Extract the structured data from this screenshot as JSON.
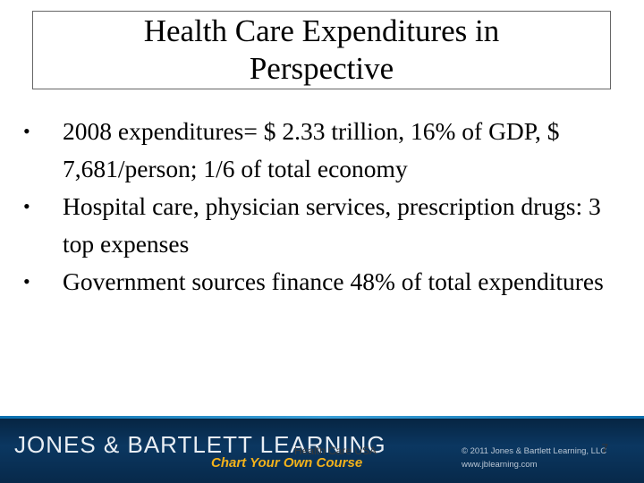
{
  "slide": {
    "title": "Health Care Expenditures in\nPerspective",
    "bullets": [
      "2008 expenditures= $ 2.33 trillion, 16% of GDP, $ 7,681/person; 1/6 of total economy",
      "Hospital care, physician services, prescription drugs: 3 top expenses",
      "Government sources finance 48% of total expenditures"
    ],
    "bullet_glyph": "•",
    "footer_text": "Health Care USA",
    "slide_number": "7"
  },
  "branding": {
    "name": "JONES & BARTLETT LEARNING",
    "tagline": "Chart Your Own Course",
    "copyright": "© 2011 Jones & Bartlett Learning, LLC",
    "website": "www.jblearning.com",
    "bar_color": "#0b3761",
    "tagline_color": "#f3b21b"
  }
}
